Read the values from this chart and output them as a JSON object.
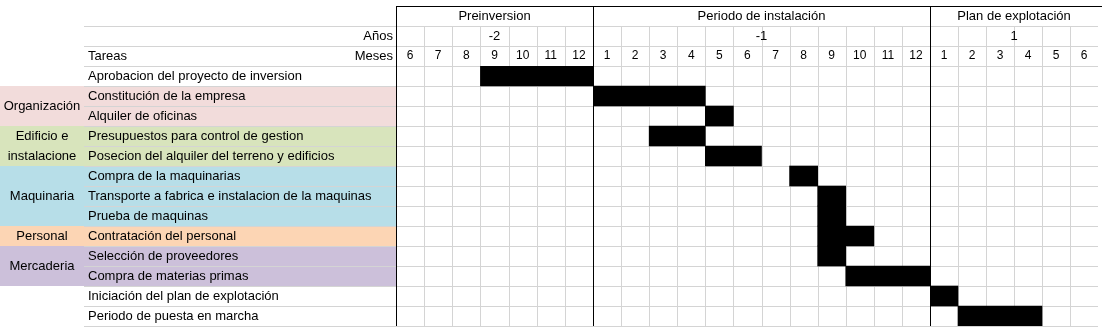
{
  "chart_data": [
    {
      "type": "other",
      "annotations": [
        "Organización",
        "Edificio e instalacione",
        "Maquinaria",
        "Personal",
        "Mercaderia"
      ]
    },
    {
      "type": "bar",
      "orientation": "horizontal",
      "title": "Preinversion",
      "subtitle": "-2",
      "xlabel": "Meses",
      "ylabel": "Tareas",
      "annotations": [
        "Años"
      ],
      "categories": [
        "Aprobacion del proyecto de inversion",
        "Constitución de la empresa",
        "Alquiler de oficinas",
        "Presupuestos para control de gestion",
        "Posecion del alquiler del terreno y edificios",
        "Compra de la maquinarias",
        "Transporte a fabrica e instalacion de la maquinas",
        "Prueba de maquinas",
        "Contratación del personal",
        "Selección de proveedores",
        "Compra de materias primas",
        "Iniciación del plan de explotación",
        "Periodo de puesta en marcha"
      ],
      "values": [
        4,
        null,
        null,
        null,
        null,
        null,
        null,
        null,
        null,
        null,
        null,
        null,
        null
      ],
      "base": [
        8.5,
        null,
        null,
        null,
        null,
        null,
        null,
        null,
        null,
        null,
        null,
        null,
        null
      ],
      "color": "#000000",
      "xlim": [
        5.5,
        12.5
      ],
      "xticks": [
        6,
        7,
        8,
        9,
        10,
        11,
        12
      ],
      "grid": true
    },
    {
      "type": "bar",
      "orientation": "horizontal",
      "title": "Periodo de instalación",
      "subtitle": "-1",
      "tick_labels": "x",
      "categories": [
        null,
        null,
        null,
        null,
        null,
        null,
        null,
        null,
        null,
        null,
        null,
        null,
        null
      ],
      "values": [
        null,
        4,
        1,
        2,
        2,
        1,
        1,
        1,
        2,
        1,
        3,
        null,
        null
      ],
      "base": [
        null,
        0.5,
        4.5,
        2.5,
        4.5,
        7.5,
        8.5,
        8.5,
        8.5,
        8.5,
        9.5,
        null,
        null
      ],
      "color": "#000000",
      "xlim": [
        0.5,
        12.5
      ],
      "xticks": [
        1,
        2,
        3,
        4,
        5,
        6,
        7,
        8,
        9,
        10,
        11,
        12
      ],
      "grid": true
    },
    {
      "type": "bar",
      "orientation": "horizontal",
      "title": "Plan de explotación",
      "subtitle": "1",
      "tick_labels": "x",
      "categories": [
        null,
        null,
        null,
        null,
        null,
        null,
        null,
        null,
        null,
        null,
        null,
        null,
        null
      ],
      "values": [
        null,
        null,
        null,
        null,
        null,
        null,
        null,
        null,
        null,
        null,
        null,
        1,
        3
      ],
      "base": [
        null,
        null,
        null,
        null,
        null,
        null,
        null,
        null,
        null,
        null,
        null,
        0.5,
        1.5
      ],
      "color": "#000000",
      "xlim": [
        0.5,
        6.5
      ],
      "xticks": [
        1,
        2,
        3,
        4,
        5,
        6
      ],
      "grid": true
    }
  ]
}
